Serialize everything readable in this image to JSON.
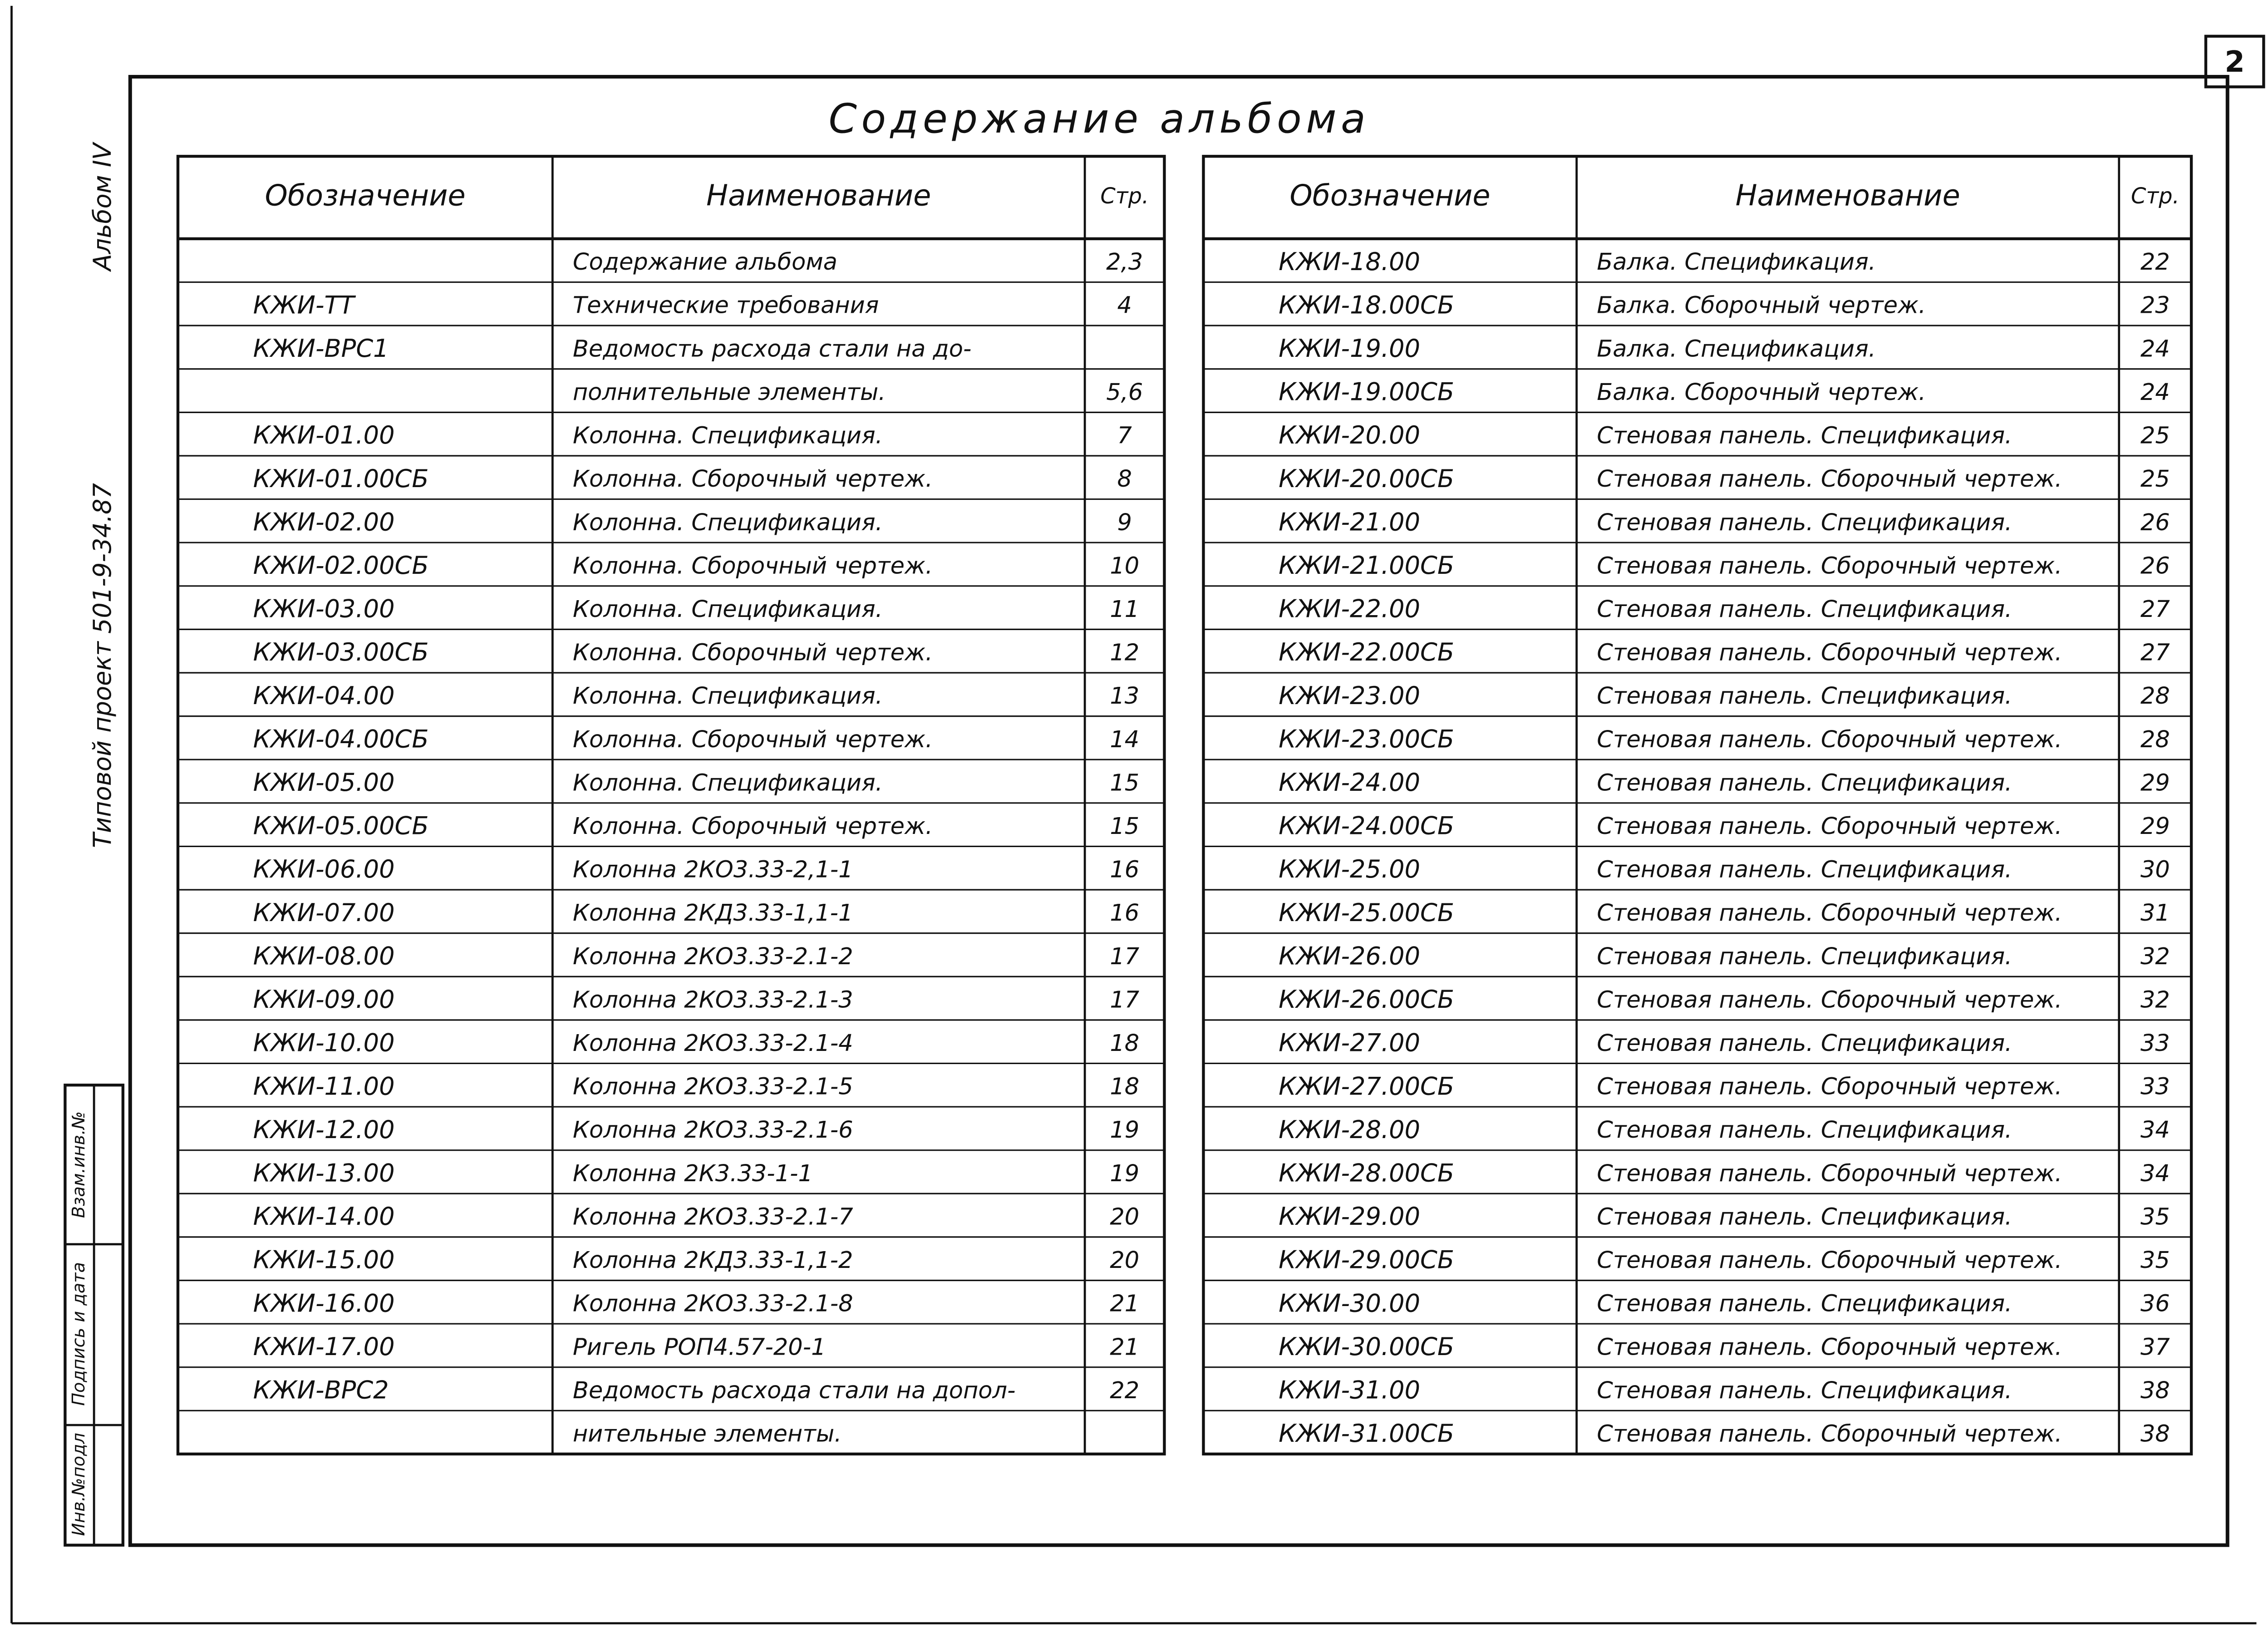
{
  "sheet_number": "2",
  "title": "Содержание альбома",
  "side": {
    "album": "Альбом IV",
    "project": "Типовой проект 501-9-34.87",
    "stamp": [
      "Инв.№подл",
      "Подпись и дата",
      "Взам.инв.№"
    ]
  },
  "left_table": {
    "header": [
      "Обозначение",
      "Наименование",
      "Стр."
    ],
    "rows": [
      [
        "",
        "Содержание альбома",
        "2,3"
      ],
      [
        "КЖИ-ТТ",
        "Технические требования",
        "4"
      ],
      [
        "КЖИ-ВРС1",
        "Ведомость расхода стали на до-",
        ""
      ],
      [
        "",
        "полнительные элементы.",
        "5,6"
      ],
      [
        "КЖИ-01.00",
        "Колонна. Спецификация.",
        "7"
      ],
      [
        "КЖИ-01.00СБ",
        "Колонна. Сборочный чертеж.",
        "8"
      ],
      [
        "КЖИ-02.00",
        "Колонна. Спецификация.",
        "9"
      ],
      [
        "КЖИ-02.00СБ",
        "Колонна. Сборочный чертеж.",
        "10"
      ],
      [
        "КЖИ-03.00",
        "Колонна. Спецификация.",
        "11"
      ],
      [
        "КЖИ-03.00СБ",
        "Колонна. Сборочный чертеж.",
        "12"
      ],
      [
        "КЖИ-04.00",
        "Колонна. Спецификация.",
        "13"
      ],
      [
        "КЖИ-04.00СБ",
        "Колонна. Сборочный чертеж.",
        "14"
      ],
      [
        "КЖИ-05.00",
        "Колонна. Спецификация.",
        "15"
      ],
      [
        "КЖИ-05.00СБ",
        "Колонна. Сборочный чертеж.",
        "15"
      ],
      [
        "КЖИ-06.00",
        "Колонна 2КО3.33-2,1-1",
        "16"
      ],
      [
        "КЖИ-07.00",
        "Колонна 2КД3.33-1,1-1",
        "16"
      ],
      [
        "КЖИ-08.00",
        "Колонна 2КО3.33-2.1-2",
        "17"
      ],
      [
        "КЖИ-09.00",
        "Колонна 2КО3.33-2.1-3",
        "17"
      ],
      [
        "КЖИ-10.00",
        "Колонна 2КО3.33-2.1-4",
        "18"
      ],
      [
        "КЖИ-11.00",
        "Колонна 2КО3.33-2.1-5",
        "18"
      ],
      [
        "КЖИ-12.00",
        "Колонна 2КО3.33-2.1-6",
        "19"
      ],
      [
        "КЖИ-13.00",
        "Колонна 2К3.33-1-1",
        "19"
      ],
      [
        "КЖИ-14.00",
        "Колонна 2КО3.33-2.1-7",
        "20"
      ],
      [
        "КЖИ-15.00",
        "Колонна 2КД3.33-1,1-2",
        "20"
      ],
      [
        "КЖИ-16.00",
        "Колонна 2КО3.33-2.1-8",
        "21"
      ],
      [
        "КЖИ-17.00",
        "Ригель РОП4.57-20-1",
        "21"
      ],
      [
        "КЖИ-ВРС2",
        "Ведомость расхода стали на допол-",
        "22"
      ],
      [
        "",
        "нительные элементы.",
        ""
      ]
    ]
  },
  "right_table": {
    "header": [
      "Обозначение",
      "Наименование",
      "Стр."
    ],
    "rows": [
      [
        "КЖИ-18.00",
        "Балка. Спецификация.",
        "22"
      ],
      [
        "КЖИ-18.00СБ",
        "Балка. Сборочный чертеж.",
        "23"
      ],
      [
        "КЖИ-19.00",
        "Балка. Спецификация.",
        "24"
      ],
      [
        "КЖИ-19.00СБ",
        "Балка. Сборочный чертеж.",
        "24"
      ],
      [
        "КЖИ-20.00",
        "Стеновая панель. Спецификация.",
        "25"
      ],
      [
        "КЖИ-20.00СБ",
        "Стеновая панель. Сборочный чертеж.",
        "25"
      ],
      [
        "КЖИ-21.00",
        "Стеновая панель. Спецификация.",
        "26"
      ],
      [
        "КЖИ-21.00СБ",
        "Стеновая панель. Сборочный чертеж.",
        "26"
      ],
      [
        "КЖИ-22.00",
        "Стеновая панель. Спецификация.",
        "27"
      ],
      [
        "КЖИ-22.00СБ",
        "Стеновая панель. Сборочный чертеж.",
        "27"
      ],
      [
        "КЖИ-23.00",
        "Стеновая панель. Спецификация.",
        "28"
      ],
      [
        "КЖИ-23.00СБ",
        "Стеновая панель. Сборочный чертеж.",
        "28"
      ],
      [
        "КЖИ-24.00",
        "Стеновая панель. Спецификация.",
        "29"
      ],
      [
        "КЖИ-24.00СБ",
        "Стеновая панель. Сборочный чертеж.",
        "29"
      ],
      [
        "КЖИ-25.00",
        "Стеновая панель. Спецификация.",
        "30"
      ],
      [
        "КЖИ-25.00СБ",
        "Стеновая панель. Сборочный чертеж.",
        "31"
      ],
      [
        "КЖИ-26.00",
        "Стеновая панель. Спецификация.",
        "32"
      ],
      [
        "КЖИ-26.00СБ",
        "Стеновая панель. Сборочный чертеж.",
        "32"
      ],
      [
        "КЖИ-27.00",
        "Стеновая панель. Спецификация.",
        "33"
      ],
      [
        "КЖИ-27.00СБ",
        "Стеновая панель. Сборочный чертеж.",
        "33"
      ],
      [
        "КЖИ-28.00",
        "Стеновая панель. Спецификация.",
        "34"
      ],
      [
        "КЖИ-28.00СБ",
        "Стеновая панель. Сборочный чертеж.",
        "34"
      ],
      [
        "КЖИ-29.00",
        "Стеновая панель. Спецификация.",
        "35"
      ],
      [
        "КЖИ-29.00СБ",
        "Стеновая панель. Сборочный чертеж.",
        "35"
      ],
      [
        "КЖИ-30.00",
        "Стеновая панель. Спецификация.",
        "36"
      ],
      [
        "КЖИ-30.00СБ",
        "Стеновая панель. Сборочный чертеж.",
        "37"
      ],
      [
        "КЖИ-31.00",
        "Стеновая панель. Спецификация.",
        "38"
      ],
      [
        "КЖИ-31.00СБ",
        "Стеновая панель. Сборочный чертеж.",
        "38"
      ]
    ]
  }
}
